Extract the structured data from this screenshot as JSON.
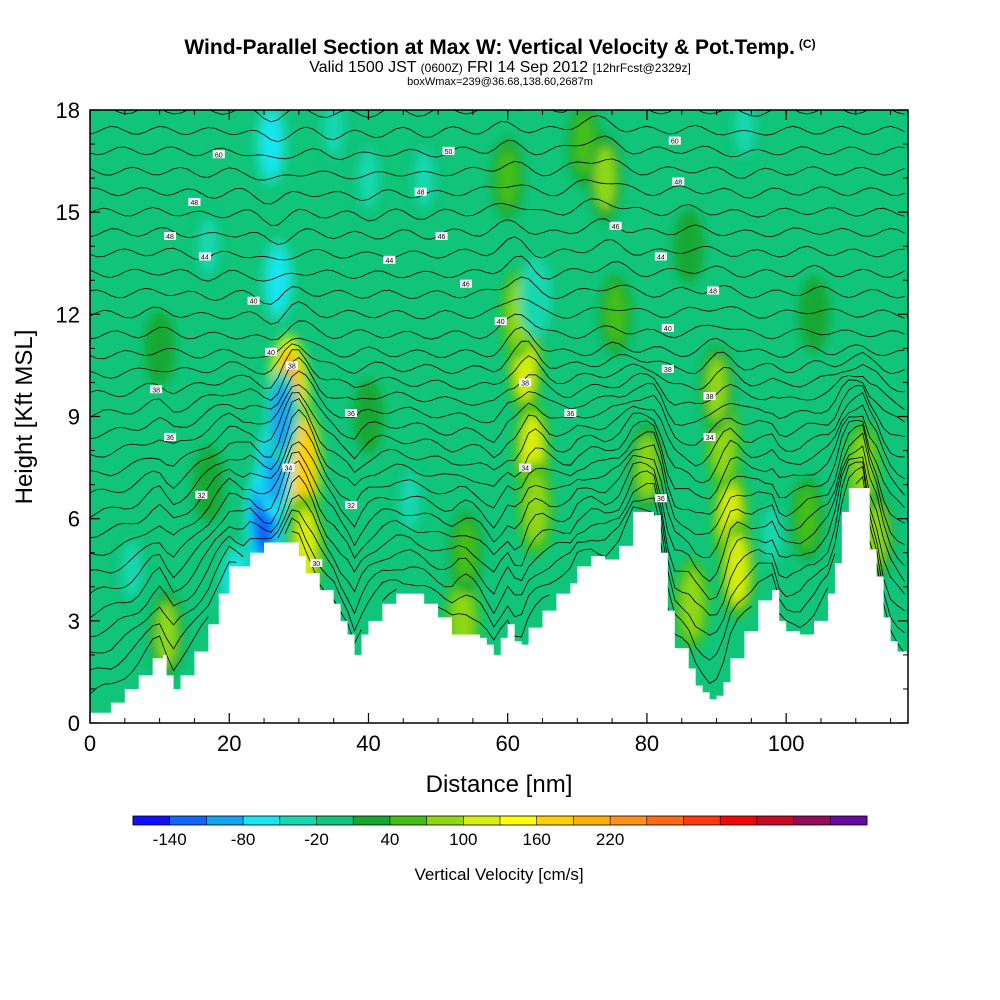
{
  "title": {
    "main": "Wind-Parallel Section at Max W: Vertical Velocity & Pot.Temp.",
    "copyright": "(C)",
    "valid_prefix": "Valid 1500 JST",
    "valid_z": "(0600Z)",
    "valid_date": "FRI 14 Sep 2012",
    "forecast_tag": "[12hrFcst@2329z]",
    "box_info": "boxWmax=239@36.68,138.60,2687m"
  },
  "chart_data": {
    "type": "heatmap",
    "xlabel": "Distance [nm]",
    "ylabel": "Height [Kft MSL]",
    "xlim": [
      0,
      117.5
    ],
    "ylim": [
      0,
      18
    ],
    "x_ticks": [
      "0",
      "20",
      "40",
      "60",
      "80",
      "100"
    ],
    "y_ticks": [
      "0",
      "3",
      "6",
      "9",
      "12",
      "15",
      "18"
    ],
    "colorbar": {
      "label": "Vertical Velocity [cm/s]",
      "tick_labels": [
        "-140",
        "-80",
        "-20",
        "40",
        "100",
        "160",
        "220"
      ],
      "colors": [
        "#1010ff",
        "#1064ff",
        "#14a4f4",
        "#18e6f0",
        "#14d8b0",
        "#10c47a",
        "#14a830",
        "#44c014",
        "#90d814",
        "#d8ee10",
        "#ffff00",
        "#ffd000",
        "#ffb000",
        "#ff9018",
        "#ff6a18",
        "#ff3810",
        "#f00808",
        "#c80a28",
        "#960a5c",
        "#680aa0"
      ]
    },
    "background_level_cm_s": 0,
    "terrain_kft": [
      [
        0,
        0.3
      ],
      [
        3,
        0.6
      ],
      [
        5,
        1.0
      ],
      [
        7,
        1.4
      ],
      [
        9,
        1.9
      ],
      [
        10.5,
        2.0
      ],
      [
        11,
        1.4
      ],
      [
        12,
        1.0
      ],
      [
        13,
        1.4
      ],
      [
        15,
        2.1
      ],
      [
        17,
        2.9
      ],
      [
        18.5,
        3.8
      ],
      [
        20,
        4.6
      ],
      [
        22,
        4.6
      ],
      [
        23,
        5.0
      ],
      [
        25,
        5.3
      ],
      [
        29,
        5.3
      ],
      [
        30,
        4.9
      ],
      [
        31,
        4.4
      ],
      [
        33,
        3.9
      ],
      [
        35,
        3.5
      ],
      [
        36,
        3.0
      ],
      [
        37,
        2.6
      ],
      [
        38,
        2.0
      ],
      [
        39,
        2.6
      ],
      [
        40,
        3.0
      ],
      [
        42,
        3.5
      ],
      [
        44,
        3.8
      ],
      [
        46,
        3.8
      ],
      [
        48,
        3.5
      ],
      [
        50,
        3.1
      ],
      [
        52,
        2.6
      ],
      [
        54,
        2.6
      ],
      [
        56,
        2.5
      ],
      [
        57,
        2.3
      ],
      [
        58,
        2.0
      ],
      [
        59,
        2.5
      ],
      [
        60,
        2.9
      ],
      [
        61,
        2.4
      ],
      [
        62,
        2.3
      ],
      [
        63,
        2.8
      ],
      [
        65,
        3.3
      ],
      [
        67,
        3.8
      ],
      [
        69,
        4.1
      ],
      [
        70,
        4.6
      ],
      [
        72,
        4.9
      ],
      [
        74,
        4.8
      ],
      [
        76,
        5.2
      ],
      [
        78,
        6.2
      ],
      [
        81,
        6.1
      ],
      [
        82,
        5.0
      ],
      [
        83,
        3.3
      ],
      [
        84,
        2.2
      ],
      [
        86,
        1.6
      ],
      [
        87,
        1.1
      ],
      [
        88,
        0.9
      ],
      [
        89,
        0.7
      ],
      [
        90,
        0.8
      ],
      [
        91,
        1.2
      ],
      [
        92,
        1.9
      ],
      [
        94,
        2.7
      ],
      [
        96,
        3.6
      ],
      [
        98,
        3.9
      ],
      [
        99,
        3.0
      ],
      [
        100,
        2.7
      ],
      [
        102,
        2.6
      ],
      [
        104,
        3.0
      ],
      [
        106,
        3.8
      ],
      [
        107,
        4.7
      ],
      [
        108,
        6.2
      ],
      [
        109,
        6.9
      ],
      [
        111,
        6.9
      ],
      [
        112,
        5.1
      ],
      [
        113,
        4.3
      ],
      [
        114,
        3.1
      ],
      [
        115,
        2.4
      ],
      [
        116,
        2.1
      ],
      [
        117.5,
        1.7
      ]
    ],
    "vertical_velocity_features_cm_s": [
      {
        "x": 28.5,
        "y": 9.5,
        "w": 200
      },
      {
        "x": 30.5,
        "y": 7.6,
        "w": 180
      },
      {
        "x": 31,
        "y": 5.2,
        "w": 120
      },
      {
        "x": 25,
        "y": 6.0,
        "w": -140
      },
      {
        "x": 26.5,
        "y": 7.5,
        "w": -110
      },
      {
        "x": 27.5,
        "y": 9.0,
        "w": -90
      },
      {
        "x": 27,
        "y": 13.0,
        "w": -60
      },
      {
        "x": 26,
        "y": 17.0,
        "w": -60
      },
      {
        "x": 21,
        "y": 4.0,
        "w": -70
      },
      {
        "x": 62.5,
        "y": 10.5,
        "w": 100
      },
      {
        "x": 63.5,
        "y": 8.0,
        "w": 110
      },
      {
        "x": 64,
        "y": 6.3,
        "w": 90
      },
      {
        "x": 61.5,
        "y": 12.0,
        "w": 80
      },
      {
        "x": 64,
        "y": 12.5,
        "w": -50
      },
      {
        "x": 60,
        "y": 16.0,
        "w": 50
      },
      {
        "x": 92,
        "y": 6.0,
        "w": 120
      },
      {
        "x": 91,
        "y": 8.2,
        "w": 90
      },
      {
        "x": 90,
        "y": 9.8,
        "w": 70
      },
      {
        "x": 93,
        "y": 4.5,
        "w": 100
      },
      {
        "x": 11,
        "y": 2.6,
        "w": 70
      },
      {
        "x": 53.5,
        "y": 3.0,
        "w": 90
      },
      {
        "x": 54,
        "y": 5.0,
        "w": 60
      },
      {
        "x": 71,
        "y": 17.0,
        "w": 60
      },
      {
        "x": 74,
        "y": 16.0,
        "w": 70
      },
      {
        "x": 75.5,
        "y": 12.0,
        "w": 50
      },
      {
        "x": 80,
        "y": 7.5,
        "w": 70
      },
      {
        "x": 86.5,
        "y": 3.5,
        "w": 80
      },
      {
        "x": 103,
        "y": 6.0,
        "w": 60
      },
      {
        "x": 111,
        "y": 7.5,
        "w": 80
      },
      {
        "x": 113,
        "y": 5.5,
        "w": 70
      },
      {
        "x": 40,
        "y": 16.0,
        "w": -40
      },
      {
        "x": 48,
        "y": 16.0,
        "w": -30
      },
      {
        "x": 17,
        "y": 14.0,
        "w": -30
      },
      {
        "x": 35,
        "y": 17.5,
        "w": -40
      },
      {
        "x": 94,
        "y": 17.5,
        "w": -30
      },
      {
        "x": 6,
        "y": 4.5,
        "w": -30
      },
      {
        "x": 46,
        "y": 6.5,
        "w": -30
      },
      {
        "x": 76,
        "y": 3.6,
        "w": -30
      },
      {
        "x": 98,
        "y": 5.5,
        "w": -25
      },
      {
        "x": 17,
        "y": 7.0,
        "w": 35
      },
      {
        "x": 40,
        "y": 9.0,
        "w": 30
      },
      {
        "x": 104,
        "y": 12.0,
        "w": 35
      },
      {
        "x": 10,
        "y": 11.0,
        "w": 30
      },
      {
        "x": 86,
        "y": 14.0,
        "w": 30
      }
    ],
    "theta_contour_labels": [
      {
        "x": 18.5,
        "y": 16.7,
        "text": "60"
      },
      {
        "x": 15,
        "y": 15.3,
        "text": "48"
      },
      {
        "x": 11.5,
        "y": 14.3,
        "text": "48"
      },
      {
        "x": 16.5,
        "y": 13.7,
        "text": "44"
      },
      {
        "x": 23.5,
        "y": 12.4,
        "text": "40"
      },
      {
        "x": 26,
        "y": 10.9,
        "text": "40"
      },
      {
        "x": 29,
        "y": 10.5,
        "text": "38"
      },
      {
        "x": 9.5,
        "y": 9.8,
        "text": "38"
      },
      {
        "x": 11.5,
        "y": 8.4,
        "text": "36"
      },
      {
        "x": 28.5,
        "y": 7.5,
        "text": "34"
      },
      {
        "x": 16,
        "y": 6.7,
        "text": "32"
      },
      {
        "x": 37.5,
        "y": 6.4,
        "text": "32"
      },
      {
        "x": 32.5,
        "y": 4.7,
        "text": "30"
      },
      {
        "x": 37.5,
        "y": 9.1,
        "text": "36"
      },
      {
        "x": 51.5,
        "y": 16.8,
        "text": "50"
      },
      {
        "x": 47.5,
        "y": 15.6,
        "text": "48"
      },
      {
        "x": 50.5,
        "y": 14.3,
        "text": "46"
      },
      {
        "x": 43,
        "y": 13.6,
        "text": "44"
      },
      {
        "x": 54,
        "y": 12.9,
        "text": "46"
      },
      {
        "x": 59,
        "y": 11.8,
        "text": "40"
      },
      {
        "x": 62.5,
        "y": 10.0,
        "text": "38"
      },
      {
        "x": 69,
        "y": 9.1,
        "text": "36"
      },
      {
        "x": 62.5,
        "y": 7.5,
        "text": "34"
      },
      {
        "x": 84,
        "y": 17.1,
        "text": "60"
      },
      {
        "x": 84.5,
        "y": 15.9,
        "text": "48"
      },
      {
        "x": 75.5,
        "y": 14.6,
        "text": "46"
      },
      {
        "x": 82,
        "y": 13.7,
        "text": "44"
      },
      {
        "x": 89.5,
        "y": 12.7,
        "text": "48"
      },
      {
        "x": 83,
        "y": 11.6,
        "text": "40"
      },
      {
        "x": 83,
        "y": 10.4,
        "text": "38"
      },
      {
        "x": 89,
        "y": 9.6,
        "text": "38"
      },
      {
        "x": 89,
        "y": 8.4,
        "text": "34"
      },
      {
        "x": 82,
        "y": 6.6,
        "text": "36"
      }
    ]
  }
}
